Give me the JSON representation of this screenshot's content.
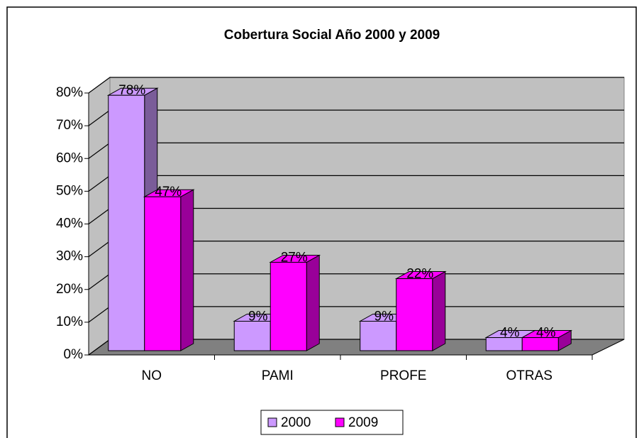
{
  "chart_data": {
    "type": "bar3d",
    "title": "Cobertura Social Año 2000 y 2009",
    "categories": [
      "NO",
      "PAMI",
      "PROFE",
      "OTRAS"
    ],
    "series": [
      {
        "name": "2000",
        "color": "#cc99ff",
        "values": [
          78,
          9,
          9,
          4
        ],
        "value_labels": [
          "78%",
          "9%",
          "9%",
          "4%"
        ]
      },
      {
        "name": "2009",
        "color": "#ff00ff",
        "values": [
          47,
          27,
          22,
          4
        ],
        "value_labels": [
          "47%",
          "27%",
          "22%",
          "4%"
        ]
      }
    ],
    "ylim": [
      0,
      80
    ],
    "yticks": [
      {
        "value": 0,
        "label": "0%"
      },
      {
        "value": 10,
        "label": "10%"
      },
      {
        "value": 20,
        "label": "20%"
      },
      {
        "value": 30,
        "label": "30%"
      },
      {
        "value": 40,
        "label": "40%"
      },
      {
        "value": 50,
        "label": "50%"
      },
      {
        "value": 60,
        "label": "60%"
      },
      {
        "value": 70,
        "label": "70%"
      },
      {
        "value": 80,
        "label": "80%"
      }
    ],
    "grid": true,
    "legend": "bottom"
  }
}
